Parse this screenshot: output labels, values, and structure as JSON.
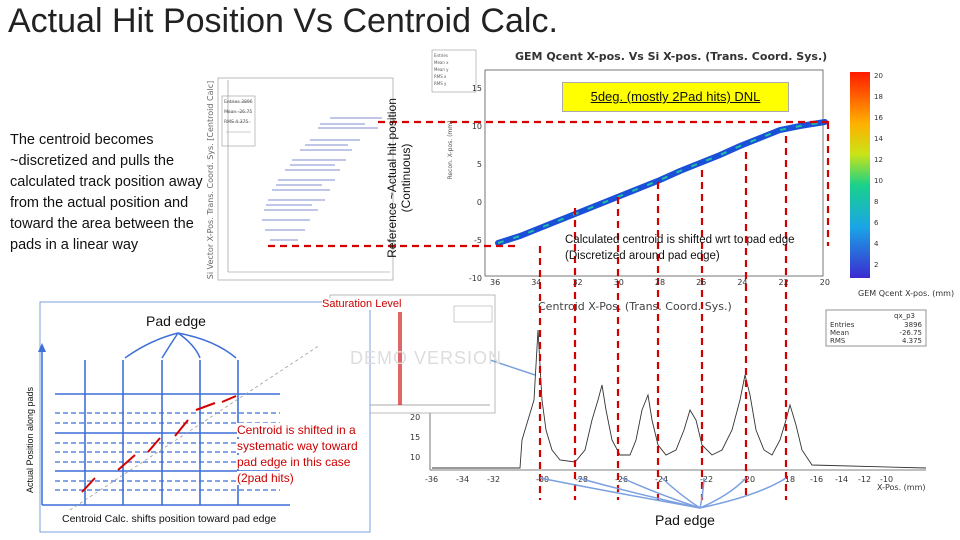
{
  "title": "Actual Hit Position Vs Centroid Calc.",
  "description_text": "The centroid becomes ~discretized and pulls the calculated track position away from the actual position and toward the area between the pads in a linear way",
  "reference_label": "Reference ~Actual hit position (Continuous)",
  "dnl_label": "5deg. (mostly 2Pad hits)  DNL",
  "calc_note": "Calculated centroid is shifted wrt to pad edge (Discretized around pad edge)",
  "saturation_label": "Saturation Level",
  "demo_watermark": "DEMO VERSION",
  "pad_edge_label_left": "Pad edge",
  "pad_edge_label_bottom": "Pad edge",
  "shift_note": "Centroid is shifted in a systematic way toward pad edge in this case (2pad hits)",
  "pad_axis_label": "Actual Position along pads",
  "centroid_caption": "Centroid Calc. shifts position toward pad edge",
  "colors": {
    "red": "#d40000",
    "blue": "#2a3fbf",
    "grid_blue": "#3d6fd8",
    "highlight": "#ffff00"
  },
  "scatter_plot": {
    "title": "GEM Qcent X-pos. Vs Si X-pos. (Trans. Coord. Sys.)",
    "y_ticks": [
      "15",
      "10",
      "5",
      "0",
      "-5",
      "-10"
    ],
    "x_ticks": [
      "36",
      "34",
      "32",
      "30",
      "28",
      "26",
      "24",
      "22",
      "20"
    ],
    "colorbar_ticks": [
      "20",
      "18",
      "16",
      "14",
      "12",
      "10",
      "8",
      "6",
      "4",
      "2"
    ],
    "y_label": "Recon. X-pos. (mm)",
    "x_label": "GEM Qcent X-pos. (mm)",
    "stats": [
      "Entries",
      "Mean x",
      "Mean y",
      "RMS x",
      "RMS y"
    ]
  },
  "profile_plot": {
    "y_label": "Si Vector X-Pos. Trans. Coord. Sys. [Centroid Calc]",
    "stats": [
      "Entries 3896",
      "Mean -26.75",
      "RMS 4.375"
    ]
  },
  "histogram": {
    "title": "Centroid X-Pos. (Trans. Coord. Sys.)",
    "name": "qx_p3",
    "stats": [
      {
        "label": "Entries",
        "value": "3896"
      },
      {
        "label": "Mean",
        "value": "-26.75"
      },
      {
        "label": "RMS",
        "value": "4.375"
      }
    ],
    "x_ticks": [
      "-36",
      "-34",
      "-32",
      "-30",
      "-28",
      "-26",
      "-24",
      "-22",
      "-20",
      "-18",
      "-16",
      "-14",
      "-12",
      "-10"
    ],
    "y_ticks": [
      "20",
      "15",
      "10"
    ],
    "x_label": "X-Pos. (mm)"
  }
}
